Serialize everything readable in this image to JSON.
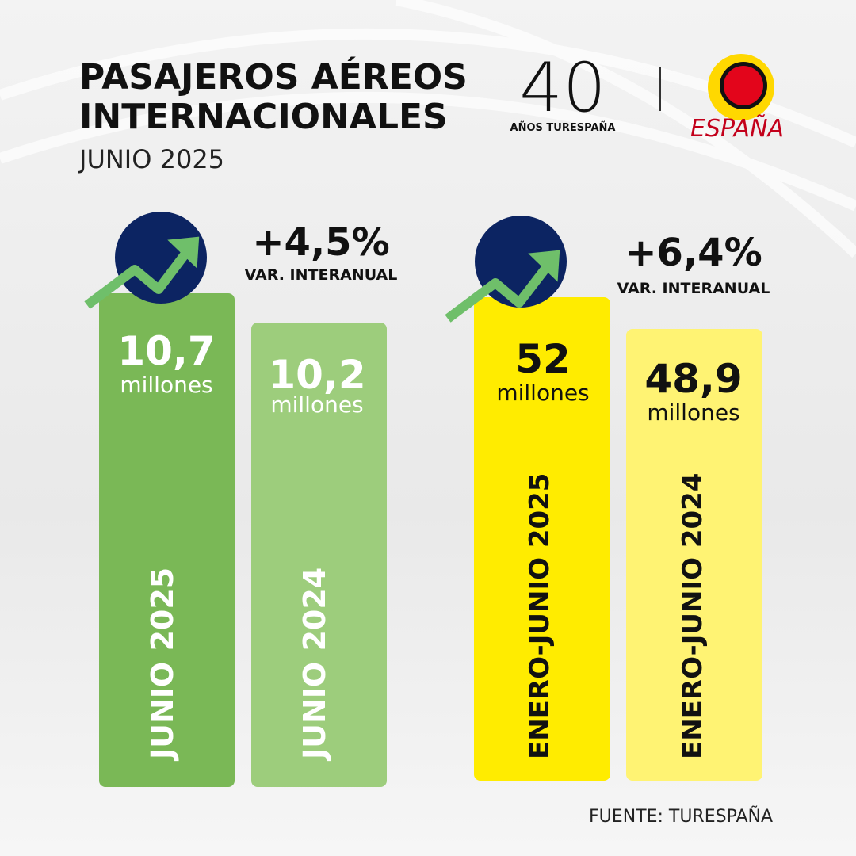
{
  "header": {
    "title_line1": "PASAJEROS AÉREOS",
    "title_line2": "INTERNACIONALES",
    "subtitle": "JUNIO 2025"
  },
  "logos": {
    "anniversary_number": "40",
    "anniversary_text": "AÑOS TURESPAÑA",
    "brand": "ESPAÑA"
  },
  "groups": [
    {
      "change": "+4,5%",
      "change_label": "VAR. INTERANUAL",
      "bars": [
        {
          "value": "10,7",
          "unit": "millones",
          "label": "JUNIO 2025"
        },
        {
          "value": "10,2",
          "unit": "millones",
          "label": "JUNIO 2024"
        }
      ]
    },
    {
      "change": "+6,4%",
      "change_label": "VAR. INTERANUAL",
      "bars": [
        {
          "value": "52",
          "unit": "millones",
          "label": "ENERO-JUNIO 2025"
        },
        {
          "value": "48,9",
          "unit": "millones",
          "label": "ENERO-JUNIO 2024"
        }
      ]
    }
  ],
  "source": "FUENTE: TURESPAÑA"
}
